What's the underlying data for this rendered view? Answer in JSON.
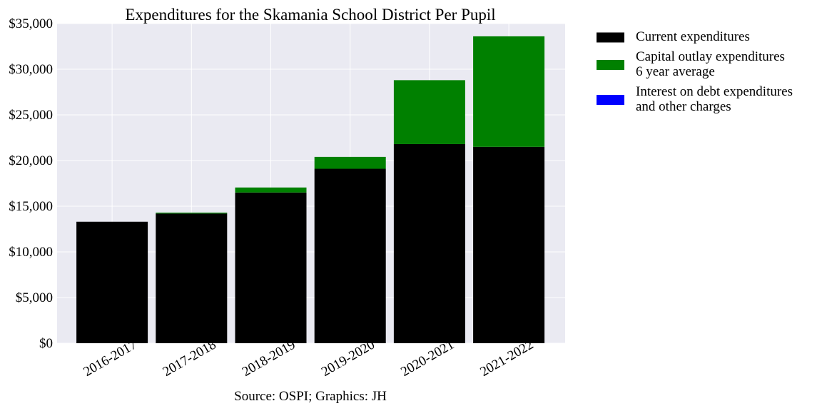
{
  "chart_data": {
    "type": "bar",
    "stacked": true,
    "title": "Expenditures for the Skamania School District Per Pupil",
    "caption": "Source: OSPI; Graphics: JH",
    "categories": [
      "2016-2017",
      "2017-2018",
      "2018-2019",
      "2019-2020",
      "2020-2021",
      "2021-2022"
    ],
    "series": [
      {
        "legend_lines": [
          "Current expenditures"
        ],
        "color": "#000000",
        "values": [
          13300,
          14200,
          16500,
          19100,
          21800,
          21500
        ]
      },
      {
        "legend_lines": [
          "Capital outlay expenditures",
          "6 year average"
        ],
        "color": "#008000",
        "values": [
          0,
          100,
          550,
          1300,
          7000,
          12100
        ]
      },
      {
        "legend_lines": [
          "Interest on debt expenditures",
          "and other charges"
        ],
        "color": "#0000ff",
        "values": [
          0,
          0,
          0,
          0,
          0,
          0
        ]
      }
    ],
    "y_ticks": [
      "$0",
      "$5,000",
      "$10,000",
      "$15,000",
      "$20,000",
      "$25,000",
      "$30,000",
      "$35,000"
    ],
    "ylim": [
      0,
      35000
    ],
    "y_tick_step": 5000,
    "grid": true,
    "legend_position": "outside-right"
  }
}
